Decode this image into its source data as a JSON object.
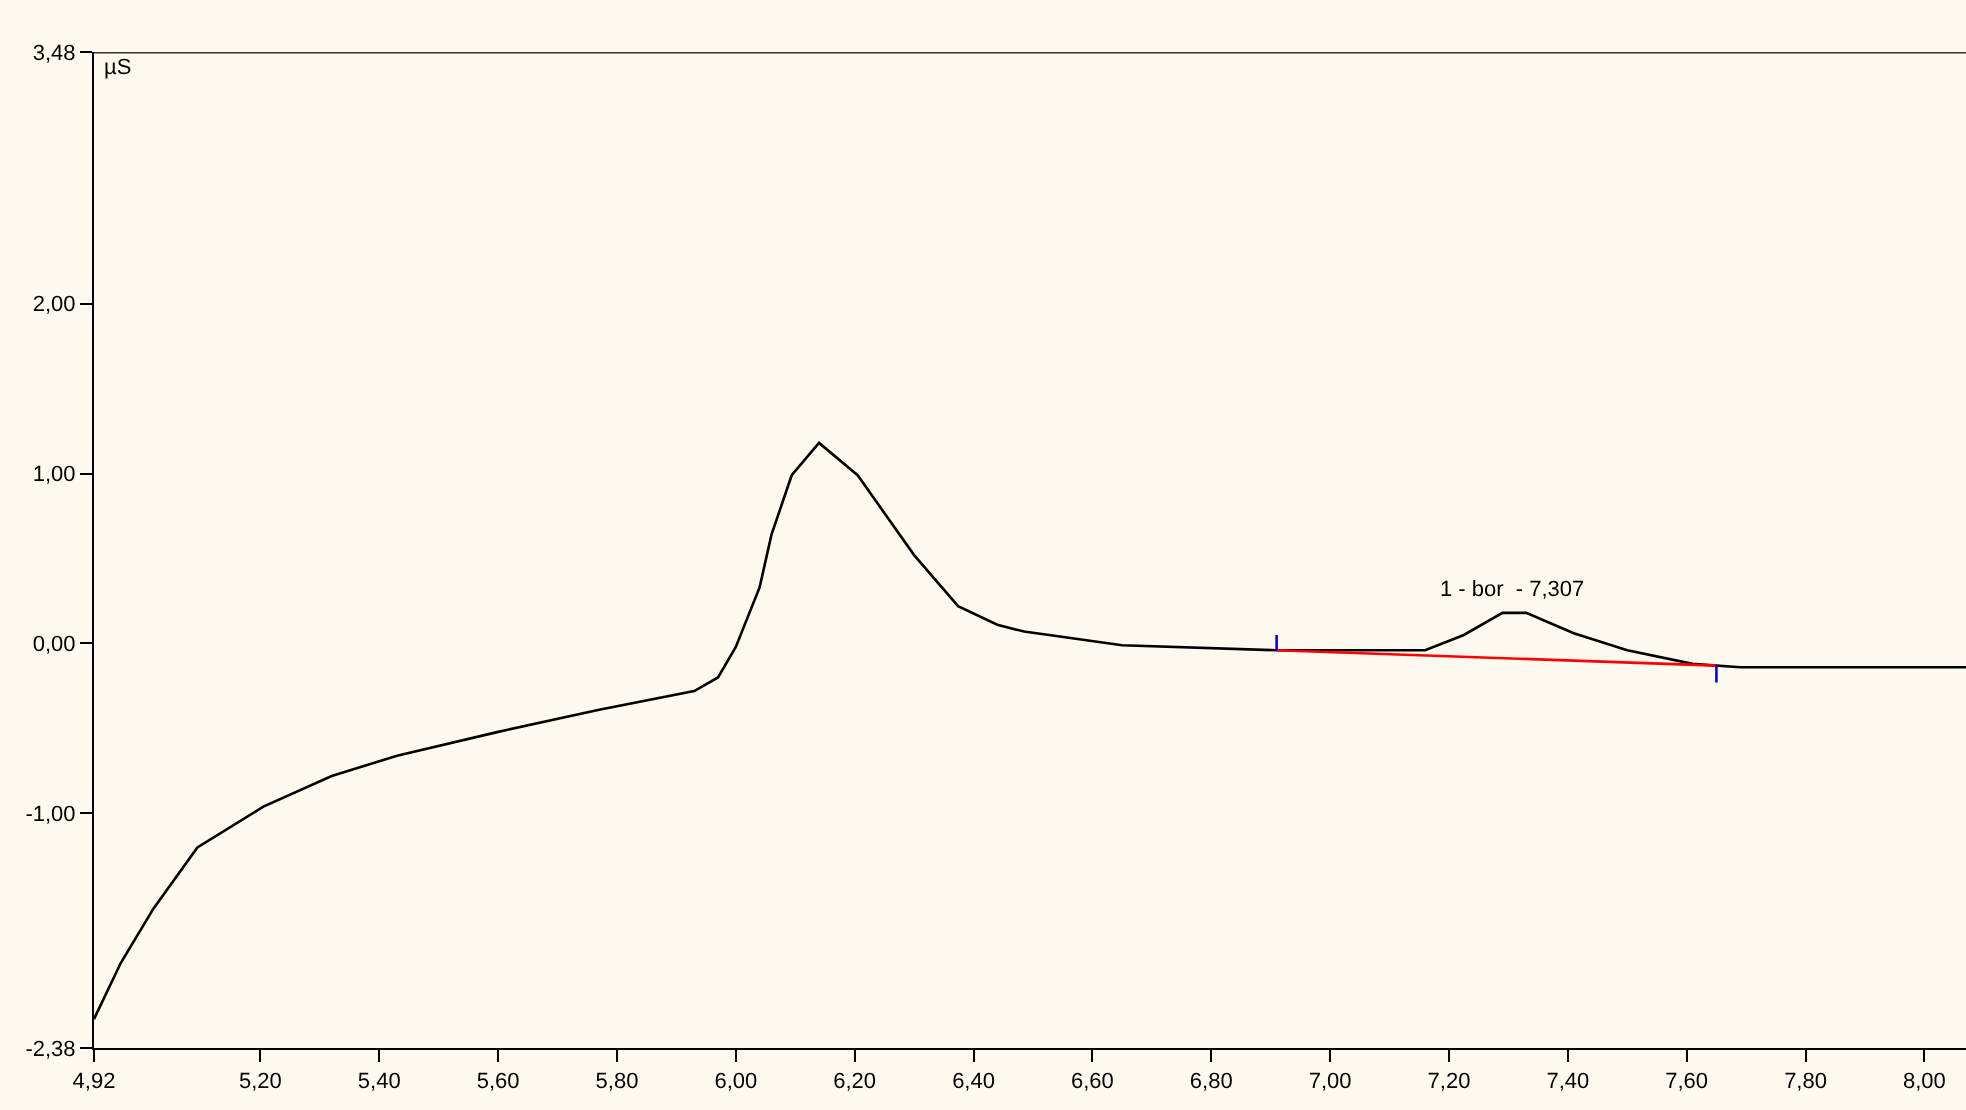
{
  "chart_data": {
    "type": "line",
    "ylabel": "µS",
    "xlim": [
      4.92,
      8.07
    ],
    "ylim": [
      -2.38,
      3.48
    ],
    "xticks": [
      {
        "value": 4.92,
        "label": "4,92"
      },
      {
        "value": 5.2,
        "label": "5,20"
      },
      {
        "value": 5.4,
        "label": "5,40"
      },
      {
        "value": 5.6,
        "label": "5,60"
      },
      {
        "value": 5.8,
        "label": "5,80"
      },
      {
        "value": 6.0,
        "label": "6,00"
      },
      {
        "value": 6.2,
        "label": "6,20"
      },
      {
        "value": 6.4,
        "label": "6,40"
      },
      {
        "value": 6.6,
        "label": "6,60"
      },
      {
        "value": 6.8,
        "label": "6,80"
      },
      {
        "value": 7.0,
        "label": "7,00"
      },
      {
        "value": 7.2,
        "label": "7,20"
      },
      {
        "value": 7.4,
        "label": "7,40"
      },
      {
        "value": 7.6,
        "label": "7,60"
      },
      {
        "value": 7.8,
        "label": "7,80"
      },
      {
        "value": 8.0,
        "label": "8,00"
      }
    ],
    "yticks": [
      {
        "value": -2.38,
        "label": "-2,38"
      },
      {
        "value": -1.0,
        "label": "-1,00"
      },
      {
        "value": 0.0,
        "label": "0,00"
      },
      {
        "value": 1.0,
        "label": "1,00"
      },
      {
        "value": 2.0,
        "label": "2,00"
      },
      {
        "value": 3.48,
        "label": "3,48"
      }
    ],
    "grid": false,
    "line_style": "solid",
    "series": [
      {
        "color": "#000000",
        "x": [
          4.92,
          4.965,
          5.02,
          5.094,
          5.205,
          5.32,
          5.43,
          5.6,
          5.77,
          5.93,
          5.97,
          6.0,
          6.04,
          6.06,
          6.094,
          6.14,
          6.205,
          6.3,
          6.374,
          6.44,
          6.485,
          6.65,
          6.91,
          7.16,
          7.225,
          7.29,
          7.33,
          7.41,
          7.5,
          7.61,
          7.69,
          8.07
        ],
        "values": [
          -2.21,
          -1.88,
          -1.56,
          -1.2,
          -0.96,
          -0.78,
          -0.66,
          -0.52,
          -0.39,
          -0.28,
          -0.2,
          -0.02,
          0.33,
          0.64,
          0.99,
          1.18,
          0.99,
          0.52,
          0.22,
          0.11,
          0.07,
          -0.01,
          -0.04,
          -0.04,
          0.05,
          0.18,
          0.18,
          0.06,
          -0.04,
          -0.12,
          -0.14,
          -0.14
        ]
      },
      {
        "color": "#ff0000",
        "x": [
          6.91,
          7.65
        ],
        "values": [
          -0.04,
          -0.13
        ]
      },
      {
        "color": "#0000ff",
        "x": [
          6.91,
          6.91
        ],
        "values": [
          -0.04,
          0.05
        ]
      },
      {
        "color": "#0000ff",
        "x": [
          7.65,
          7.65
        ],
        "values": [
          -0.13,
          -0.23
        ]
      }
    ],
    "annotations": [
      {
        "text": "1 - bor  - 7,307",
        "x": 7.307,
        "y": 0.18
      }
    ]
  }
}
